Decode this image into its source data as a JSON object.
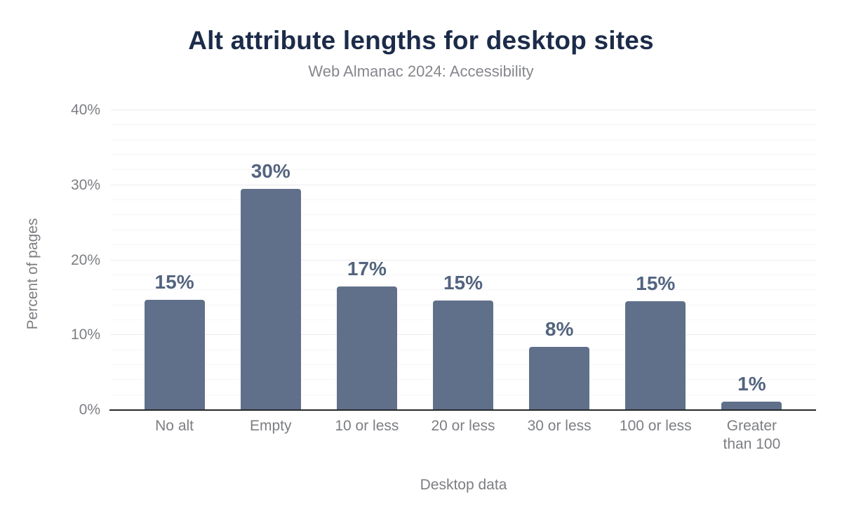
{
  "chart_data": {
    "type": "bar",
    "title": "Alt attribute lengths for desktop sites",
    "subtitle": "Web Almanac 2024: Accessibility",
    "categories": [
      "No alt",
      "Empty",
      "10 or less",
      "20 or less",
      "30 or less",
      "100 or less",
      "Greater than 100"
    ],
    "values": [
      14.7,
      29.5,
      16.5,
      14.6,
      8.4,
      14.5,
      1.1
    ],
    "value_labels": [
      "15%",
      "30%",
      "17%",
      "15%",
      "8%",
      "15%",
      "1%"
    ],
    "xlabel": "Desktop data",
    "ylabel": "Percent of pages",
    "ylim": [
      0,
      40
    ],
    "yticks": [
      0,
      10,
      20,
      30,
      40
    ],
    "ytick_labels": [
      "0%",
      "10%",
      "20%",
      "30%",
      "40%"
    ],
    "minor_grid_step_percent": 2,
    "major_grid_step_percent": 10,
    "grid": "horizontal",
    "legend": "none"
  },
  "style": {
    "background": "#ffffff",
    "title_color": "#1c2b49",
    "subtitle_color": "#85878c",
    "bar_color": "#60708a",
    "value_label_color": "#53647f",
    "tick_label_color": "#7c7e83",
    "axis_line_color": "#26282b",
    "grid_major_color": "#ebebee",
    "grid_minor_color": "#f5f5f7"
  }
}
